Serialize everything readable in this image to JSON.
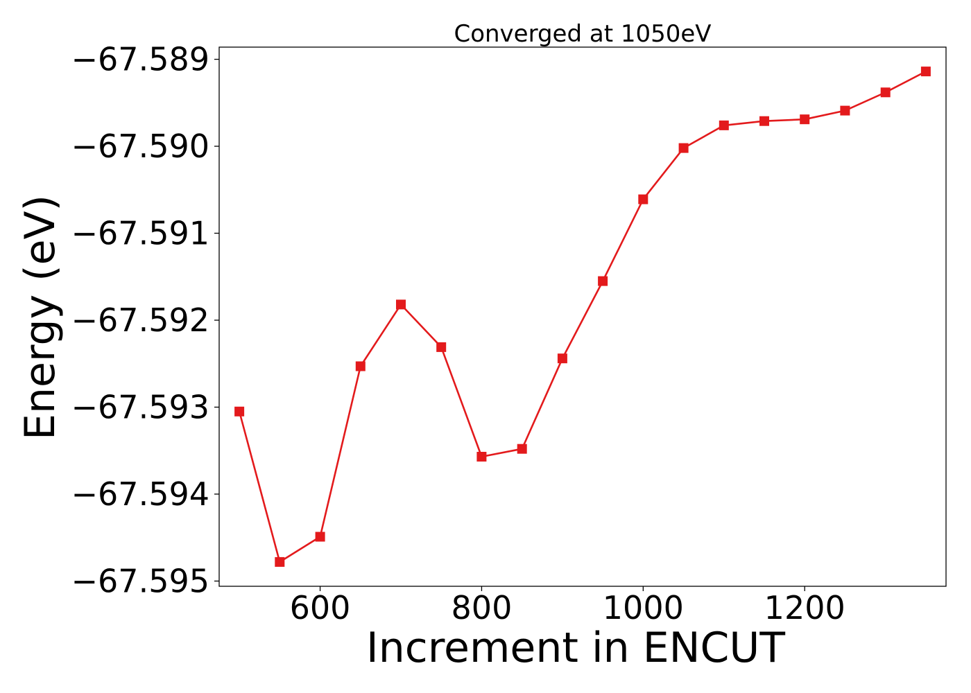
{
  "chart_data": {
    "type": "line",
    "title": "Converged at 1050eV",
    "xlabel": "Increment in ENCUT",
    "ylabel": "Energy (eV)",
    "xlim": [
      475,
      1375
    ],
    "ylim": [
      -67.59506,
      -67.58886
    ],
    "xticks": [
      600,
      800,
      1000,
      1200
    ],
    "xtick_labels": [
      "600",
      "800",
      "1000",
      "1200"
    ],
    "yticks": [
      -67.595,
      -67.594,
      -67.593,
      -67.592,
      -67.591,
      -67.59,
      -67.589
    ],
    "ytick_labels": [
      "−67.595",
      "−67.594",
      "−67.593",
      "−67.592",
      "−67.591",
      "−67.590",
      "−67.589"
    ],
    "grid": false,
    "series": [
      {
        "color": "#e31a1c",
        "marker": "square",
        "x": [
          500,
          550,
          600,
          650,
          700,
          750,
          800,
          850,
          900,
          950,
          1000,
          1050,
          1100,
          1150,
          1200,
          1250,
          1300,
          1350
        ],
        "y": [
          -67.59305,
          -67.59478,
          -67.59449,
          -67.59253,
          -67.59182,
          -67.59231,
          -67.59357,
          -67.59348,
          -67.59244,
          -67.59155,
          -67.59061,
          -67.59002,
          -67.58976,
          -67.58971,
          -67.58969,
          -67.58959,
          -67.58938,
          -67.58914
        ]
      }
    ]
  }
}
